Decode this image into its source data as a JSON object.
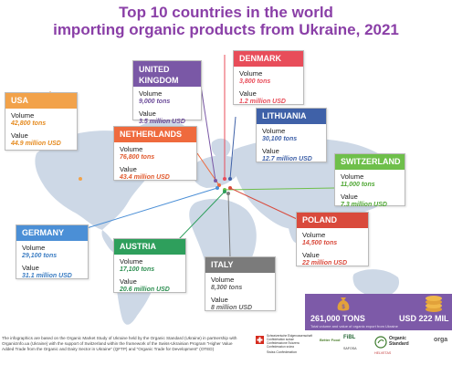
{
  "title": {
    "line1": "Top 10 countries in the world",
    "line2": "importing organic products from Ukraine, 2021"
  },
  "labels": {
    "volume": "Volume",
    "value": "Value"
  },
  "countries": {
    "usa": {
      "name": "USA",
      "volume": "42,800 tons",
      "value": "44.9 million USD",
      "color": "#f2a24a"
    },
    "uk": {
      "name_line1": "UNITED",
      "name_line2": "KINGDOM",
      "volume": "9,000 tons",
      "value": "3.5 million USD",
      "color": "#7a58a6"
    },
    "denmark": {
      "name": "DENMARK",
      "volume": "3,800 tons",
      "value": "1.2 million USD",
      "color": "#e84d5a"
    },
    "netherlands": {
      "name": "NETHERLANDS",
      "volume": "76,800 tons",
      "value": "43.4 million USD",
      "color": "#ef6a3d"
    },
    "lithuania": {
      "name": "LITHUANIA",
      "volume": "30,100 tons",
      "value": "12.7 million USD",
      "color": "#3f61a8"
    },
    "switzerland": {
      "name": "SWITZERLAND",
      "volume": "11,000 tons",
      "value": "7.3 million USD",
      "color": "#6ebf4a"
    },
    "poland": {
      "name": "POLAND",
      "volume": "14,500 tons",
      "value": "22 million USD",
      "color": "#d94a3c"
    },
    "germany": {
      "name": "GERMANY",
      "volume": "29,100 tons",
      "value": "31.1 million USD",
      "color": "#4b8fd6"
    },
    "austria": {
      "name": "AUSTRIA",
      "volume": "17,100 tons",
      "value": "20.6 million USD",
      "color": "#2e9f5c"
    },
    "italy": {
      "name": "ITALY",
      "volume": "8,300 tons",
      "value": "8 million USD",
      "color": "#7b7b7b"
    }
  },
  "totals": {
    "tons": "261,000 TONS",
    "usd": "USD 222 MIL",
    "note": "Total volume and value of organic export from Ukraine"
  },
  "footnote": "The infographics are based on the Organic Market Study of Ukraine held by the Organic Standard (Ukraine) in partnership with OrganicInfo.ua (Ukraine) with the support of Switzerland within the framework of the Swiss-Ukrainian Program \"Higher Value Added Trade from the Organic and Dairy Sector in Ukraine\" (QFTP) and \"Organic Trade for Development\" (OTED)",
  "logos": {
    "swiss": "Schweizerische Eidgenossenschaft Confédération suisse Confederazione Svizzera Confederaziun svizra",
    "swiss_sub": "Swiss Confederation",
    "fibl": "FiBL",
    "organic_standard": "Organic Standard",
    "better_food": "Better Food",
    "safosa": "SAFOSA",
    "helvetas": "HELVETAS",
    "orga": "orga"
  },
  "colors": {
    "title": "#8a3fa7",
    "map": "#cdd8e6",
    "totals_panel": "#7d5aa8"
  }
}
